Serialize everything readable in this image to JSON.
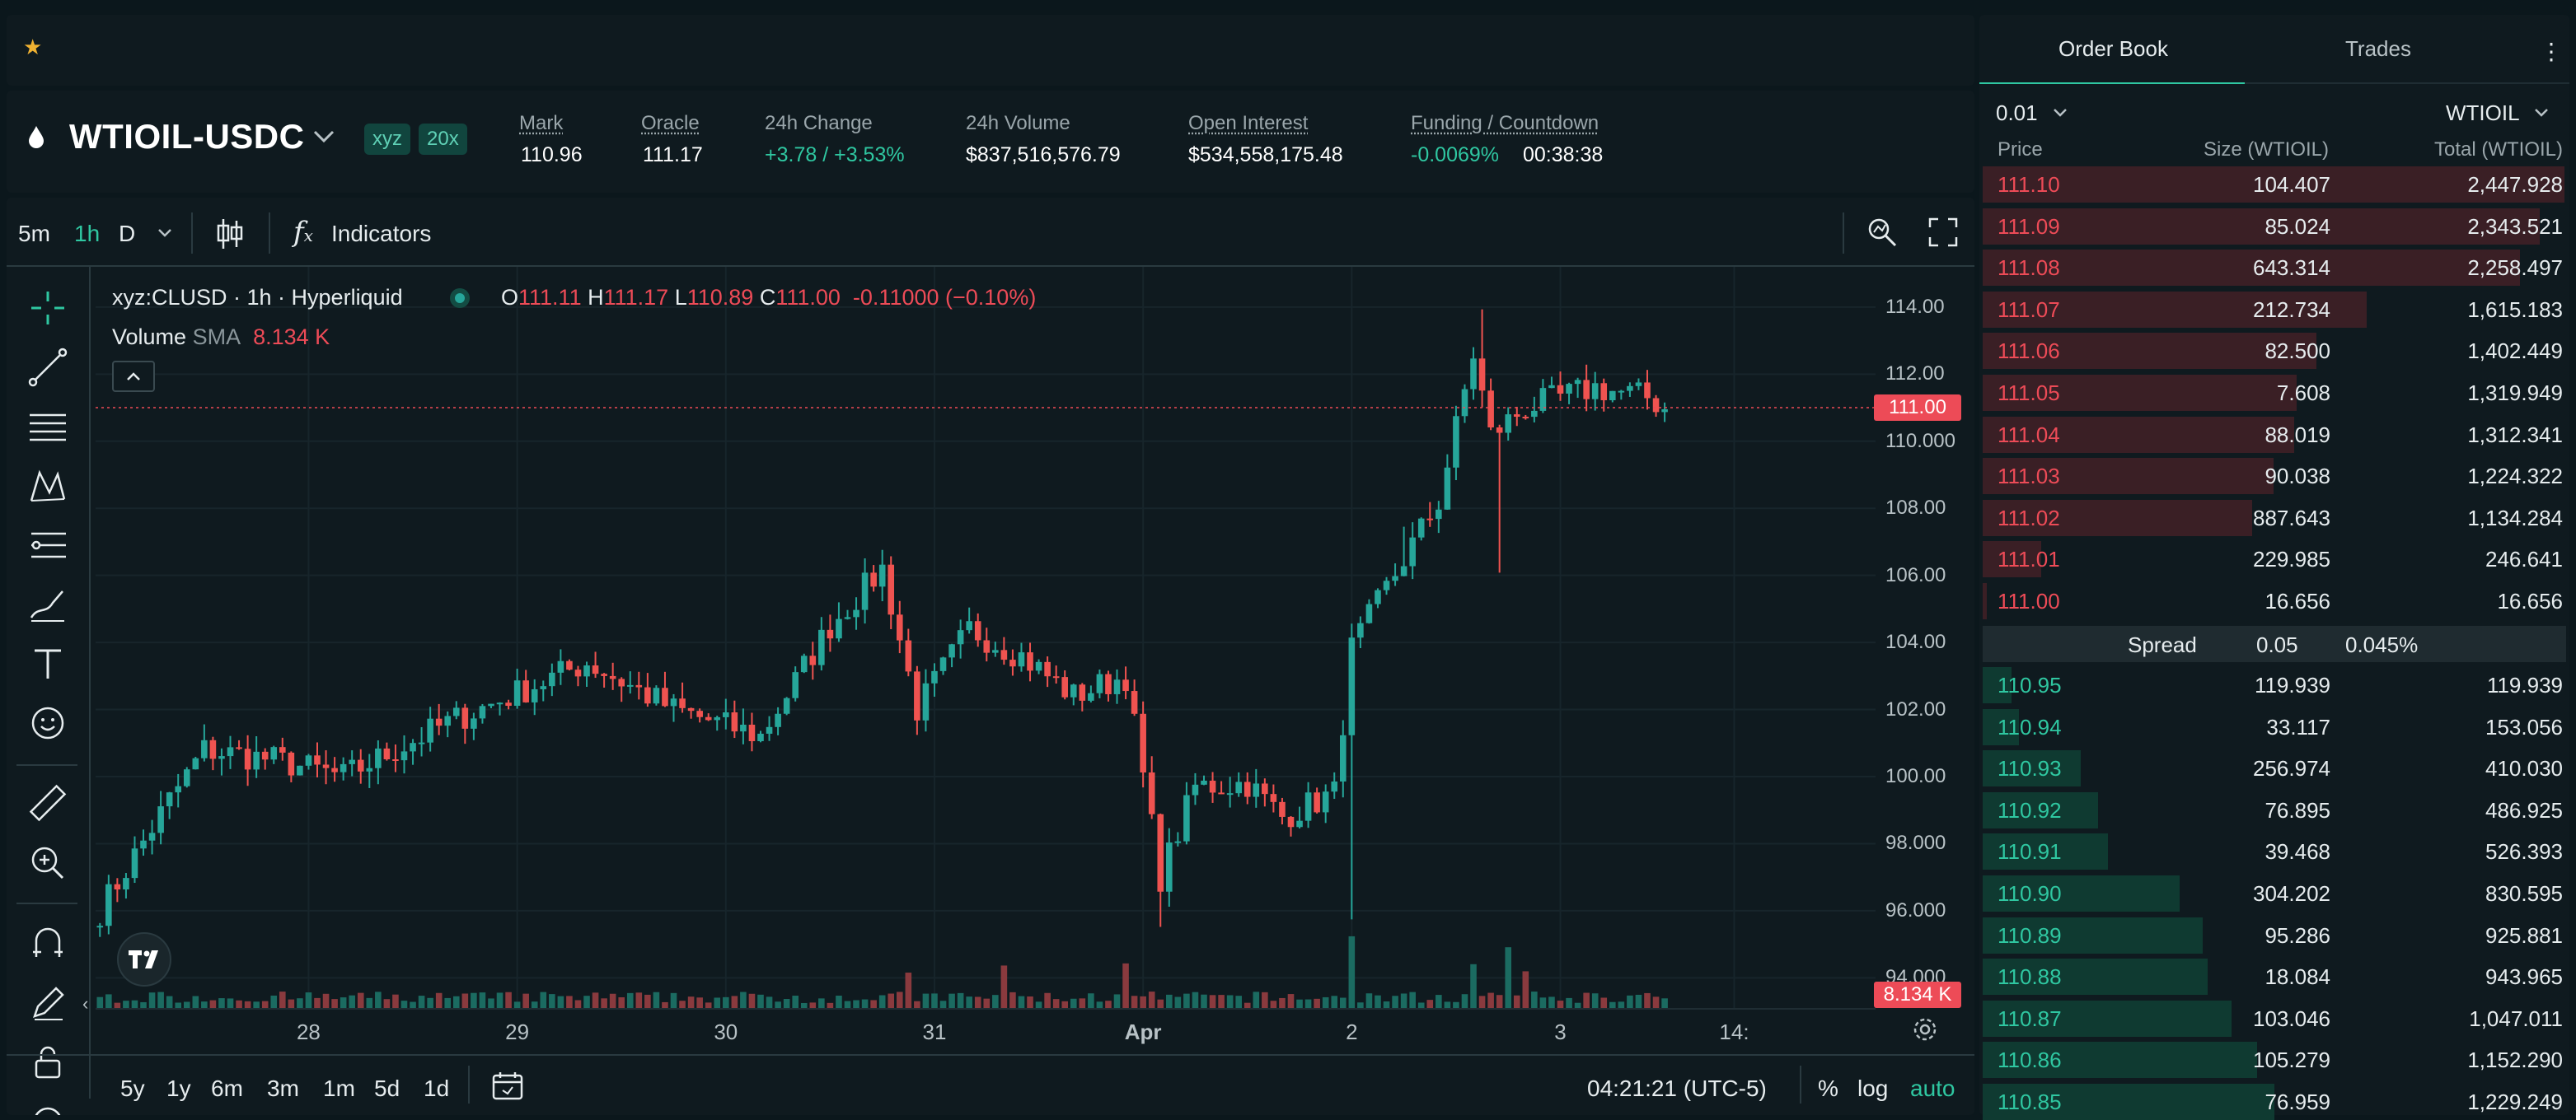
{
  "header": {
    "star_icon": "star-icon"
  },
  "market": {
    "symbol": "WTIOIL-USDC",
    "badges": [
      "xyz",
      "20x"
    ],
    "stats": [
      {
        "label": "Mark",
        "value": "110.96",
        "underline": true
      },
      {
        "label": "Oracle",
        "value": "111.17",
        "underline": true
      },
      {
        "label": "24h Change",
        "value": "+3.78 / +3.53%",
        "underline": false
      },
      {
        "label": "24h Volume",
        "value": "$837,516,576.79",
        "underline": false
      },
      {
        "label": "Open Interest",
        "value": "$534,558,175.48",
        "underline": true
      },
      {
        "label": "Funding / Countdown",
        "value": "-0.0069%",
        "value2": "00:38:38",
        "underline": true
      }
    ]
  },
  "toolbar": {
    "intervals": [
      "5m",
      "1h",
      "D"
    ],
    "active_interval": "1h",
    "indicators_label": "Indicators"
  },
  "legend": {
    "symbol_line": "xyz:CLUSD · 1h · Hyperliquid",
    "o_label": "O",
    "o": "111.11",
    "h_label": "H",
    "h": "111.17",
    "l_label": "L",
    "l": "110.89",
    "c_label": "C",
    "c": "111.00",
    "change": "-0.11000 (−0.10%)",
    "volume_label": "Volume",
    "sma_label": "SMA",
    "volume_value": "8.134 K"
  },
  "chart_data": {
    "type": "candlestick",
    "y_ticks": [
      "114.00",
      "112.00",
      "110.000",
      "108.00",
      "106.00",
      "104.00",
      "102.00",
      "100.00",
      "98.000",
      "96.000",
      "94.000"
    ],
    "y_tick_values": [
      114,
      112,
      110,
      108,
      106,
      104,
      102,
      100,
      98,
      96,
      94
    ],
    "ylim": [
      93.1,
      115.2
    ],
    "x_ticks": [
      "28",
      "29",
      "30",
      "31",
      "Apr",
      "2",
      "3",
      "14:"
    ],
    "x_tick_positions": [
      24,
      48,
      72,
      96,
      120,
      144,
      168,
      188
    ],
    "x_count": 204,
    "last_price": "111.00",
    "last_price_value": 111.0,
    "volume_tag": "8.134 K",
    "anchors": [
      [
        0,
        96.0
      ],
      [
        8,
        99.3
      ],
      [
        12,
        100.8
      ],
      [
        20,
        100.5
      ],
      [
        28,
        100.0
      ],
      [
        40,
        101.6
      ],
      [
        56,
        103.4
      ],
      [
        66,
        102.0
      ],
      [
        76,
        101.2
      ],
      [
        84,
        104.5
      ],
      [
        90,
        106.2
      ],
      [
        94,
        102.0
      ],
      [
        100,
        104.4
      ],
      [
        106,
        103.6
      ],
      [
        112,
        102.4
      ],
      [
        118,
        103.0
      ],
      [
        122,
        97.0
      ],
      [
        126,
        99.7
      ],
      [
        132,
        99.8
      ],
      [
        136,
        98.8
      ],
      [
        142,
        99.5
      ],
      [
        144,
        103.8
      ],
      [
        150,
        106.5
      ],
      [
        154,
        108.2
      ],
      [
        158,
        112.6
      ],
      [
        160,
        110.2
      ],
      [
        164,
        111.0
      ],
      [
        172,
        111.6
      ],
      [
        178,
        111.3
      ],
      [
        180,
        111.0
      ]
    ],
    "spikes": [
      [
        122,
        -1.0
      ],
      [
        144,
        -5.0
      ],
      [
        159,
        1.0
      ],
      [
        161,
        -4.0
      ],
      [
        150,
        0.8
      ]
    ],
    "volume_spikes": [
      [
        93,
        0.45
      ],
      [
        104,
        0.7
      ],
      [
        118,
        0.6
      ],
      [
        144,
        1.2
      ],
      [
        158,
        0.75
      ],
      [
        162,
        0.9
      ],
      [
        164,
        0.6
      ]
    ]
  },
  "ranges": {
    "items": [
      "5y",
      "1y",
      "6m",
      "3m",
      "1m",
      "5d",
      "1d"
    ],
    "clock": "04:21:21 (UTC-5)",
    "percent": "%",
    "log": "log",
    "auto": "auto"
  },
  "orderbook": {
    "tabs": [
      "Order Book",
      "Trades"
    ],
    "tick": "0.01",
    "asset": "WTIOIL",
    "headers": {
      "price": "Price",
      "size": "Size (WTIOIL)",
      "total": "Total (WTIOIL)"
    },
    "asks": [
      {
        "price": "111.10",
        "size": "104.407",
        "total": "2,447.928",
        "depth": 1.0
      },
      {
        "price": "111.09",
        "size": "85.024",
        "total": "2,343.521",
        "depth": 0.957
      },
      {
        "price": "111.08",
        "size": "643.314",
        "total": "2,258.497",
        "depth": 0.923
      },
      {
        "price": "111.07",
        "size": "212.734",
        "total": "1,615.183",
        "depth": 0.66
      },
      {
        "price": "111.06",
        "size": "82.500",
        "total": "1,402.449",
        "depth": 0.573
      },
      {
        "price": "111.05",
        "size": "7.608",
        "total": "1,319.949",
        "depth": 0.539
      },
      {
        "price": "111.04",
        "size": "88.019",
        "total": "1,312.341",
        "depth": 0.536
      },
      {
        "price": "111.03",
        "size": "90.038",
        "total": "1,224.322",
        "depth": 0.5
      },
      {
        "price": "111.02",
        "size": "887.643",
        "total": "1,134.284",
        "depth": 0.463
      },
      {
        "price": "111.01",
        "size": "229.985",
        "total": "246.641",
        "depth": 0.101
      },
      {
        "price": "111.00",
        "size": "16.656",
        "total": "16.656",
        "depth": 0.007
      }
    ],
    "spread": {
      "label": "Spread",
      "value": "0.05",
      "percent": "0.045%"
    },
    "bids": [
      {
        "price": "110.95",
        "size": "119.939",
        "total": "119.939",
        "depth": 0.049
      },
      {
        "price": "110.94",
        "size": "33.117",
        "total": "153.056",
        "depth": 0.063
      },
      {
        "price": "110.93",
        "size": "256.974",
        "total": "410.030",
        "depth": 0.168
      },
      {
        "price": "110.92",
        "size": "76.895",
        "total": "486.925",
        "depth": 0.199
      },
      {
        "price": "110.91",
        "size": "39.468",
        "total": "526.393",
        "depth": 0.215
      },
      {
        "price": "110.90",
        "size": "304.202",
        "total": "830.595",
        "depth": 0.339
      },
      {
        "price": "110.89",
        "size": "95.286",
        "total": "925.881",
        "depth": 0.378
      },
      {
        "price": "110.88",
        "size": "18.084",
        "total": "943.965",
        "depth": 0.386
      },
      {
        "price": "110.87",
        "size": "103.046",
        "total": "1,047.011",
        "depth": 0.428
      },
      {
        "price": "110.86",
        "size": "105.279",
        "total": "1,152.290",
        "depth": 0.471
      },
      {
        "price": "110.85",
        "size": "76.959",
        "total": "1,229.249",
        "depth": 0.502
      }
    ]
  },
  "colors": {
    "up": "#26a69a",
    "down": "#ef5350",
    "ask_bar": "#3a1f25",
    "bid_bar": "#0f3a31",
    "accent": "#2fc7a1"
  }
}
